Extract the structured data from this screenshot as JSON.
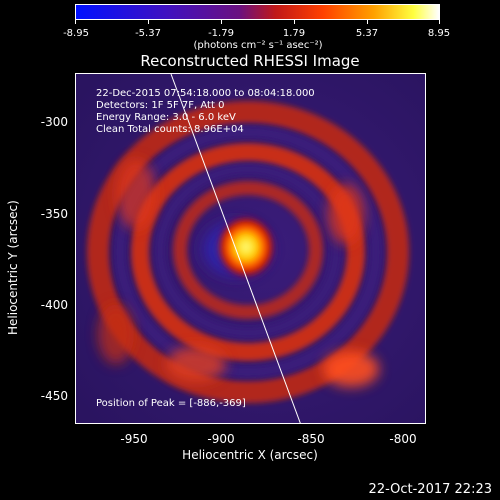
{
  "colorbar": {
    "ticks": [
      "-8.95",
      "-5.37",
      "-1.79",
      "1.79",
      "5.37",
      "8.95"
    ],
    "units_text": "(photons cm⁻² s⁻¹ asec⁻²)"
  },
  "plot": {
    "title": "Reconstructed RHESSI Image",
    "info": {
      "time_range": "22-Dec-2015 07:54:18.000 to 08:04:18.000",
      "detectors": "Detectors: 1F 5F 7F, Att 0",
      "energy": "Energy Range: 3.0 - 6.0 keV",
      "clean": "Clean      Total counts: 8.96E+04"
    },
    "peak_text": "Position of Peak = [-886,-369]",
    "y_axis": {
      "label": "Heliocentric Y (arcsec)",
      "ticks": [
        "-300",
        "-350",
        "-400",
        "-450"
      ]
    },
    "x_axis": {
      "label": "Heliocentric X (arcsec)",
      "ticks": [
        "-950",
        "-900",
        "-850",
        "-800"
      ]
    }
  },
  "footer": {
    "timestamp": "22-Oct-2017 22:23"
  }
}
